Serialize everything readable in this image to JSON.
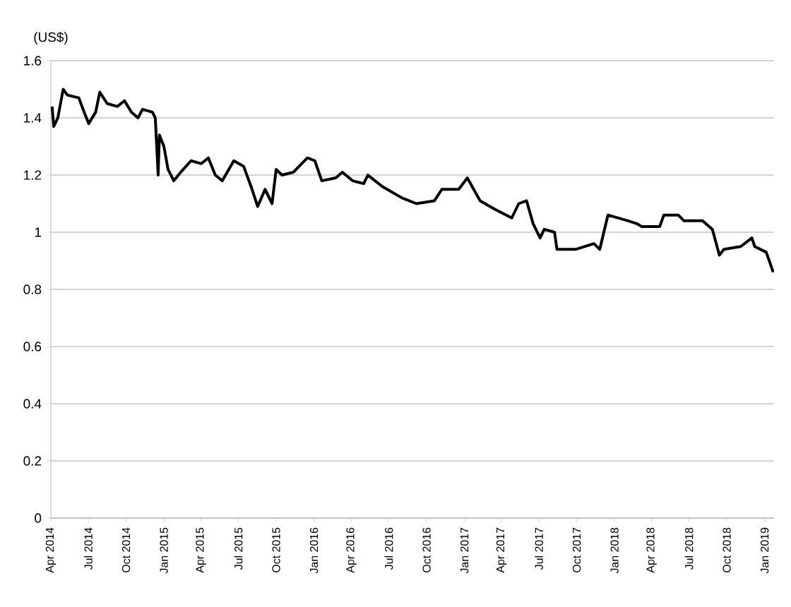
{
  "chart_data": {
    "type": "line",
    "ylabel": "(US$)",
    "x": [
      "2014-04-04",
      "2014-04-08",
      "2014-04-18",
      "2014-05-01",
      "2014-05-11",
      "2014-06-08",
      "2014-06-21",
      "2014-07-02",
      "2014-07-19",
      "2014-07-29",
      "2014-08-16",
      "2014-09-10",
      "2014-09-27",
      "2014-10-14",
      "2014-10-30",
      "2014-11-10",
      "2014-12-04",
      "2014-12-11",
      "2014-12-18",
      "2014-12-21",
      "2015-01-01",
      "2015-01-11",
      "2015-01-25",
      "2015-02-11",
      "2015-03-08",
      "2015-04-02",
      "2015-04-19",
      "2015-05-06",
      "2015-05-23",
      "2015-06-20",
      "2015-07-14",
      "2015-08-01",
      "2015-08-17",
      "2015-09-04",
      "2015-09-21",
      "2015-10-01",
      "2015-10-15",
      "2015-11-12",
      "2015-12-16",
      "2016-01-03",
      "2016-01-20",
      "2016-02-23",
      "2016-03-10",
      "2016-04-04",
      "2016-05-01",
      "2016-05-11",
      "2016-06-15",
      "2016-08-02",
      "2016-09-06",
      "2016-10-20",
      "2016-11-07",
      "2016-12-18",
      "2017-01-08",
      "2017-02-08",
      "2017-03-16",
      "2017-04-26",
      "2017-05-13",
      "2017-06-01",
      "2017-06-17",
      "2017-07-04",
      "2017-07-14",
      "2017-08-08",
      "2017-08-14",
      "2017-09-28",
      "2017-11-12",
      "2017-11-26",
      "2017-12-16",
      "2018-02-03",
      "2018-02-24",
      "2018-03-08",
      "2018-04-21",
      "2018-05-01",
      "2018-06-05",
      "2018-06-19",
      "2018-08-03",
      "2018-08-27",
      "2018-09-13",
      "2018-09-24",
      "2018-11-04",
      "2018-12-01",
      "2018-12-08",
      "2019-01-05",
      "2019-01-22"
    ],
    "series": [
      {
        "color": "#000000",
        "values": [
          1.44,
          1.37,
          1.4,
          1.5,
          1.48,
          1.47,
          1.42,
          1.38,
          1.42,
          1.49,
          1.45,
          1.44,
          1.46,
          1.42,
          1.4,
          1.43,
          1.42,
          1.4,
          1.2,
          1.34,
          1.3,
          1.22,
          1.18,
          1.21,
          1.25,
          1.24,
          1.26,
          1.2,
          1.18,
          1.25,
          1.23,
          1.16,
          1.09,
          1.15,
          1.1,
          1.22,
          1.2,
          1.21,
          1.26,
          1.25,
          1.18,
          1.19,
          1.21,
          1.18,
          1.17,
          1.2,
          1.16,
          1.12,
          1.1,
          1.11,
          1.15,
          1.15,
          1.19,
          1.11,
          1.08,
          1.05,
          1.1,
          1.11,
          1.03,
          0.98,
          1.01,
          1.0,
          0.94,
          0.94,
          0.96,
          0.94,
          1.06,
          1.04,
          1.03,
          1.02,
          1.02,
          1.06,
          1.06,
          1.04,
          1.04,
          1.01,
          0.92,
          0.94,
          0.95,
          0.98,
          0.95,
          0.93,
          0.86
        ]
      }
    ],
    "xlim": [
      "2014-04-01",
      "2019-01-24"
    ],
    "xticks": [
      {
        "value": "2014-04-01",
        "label": "Apr 2014"
      },
      {
        "value": "2014-07-01",
        "label": "Jul 2014"
      },
      {
        "value": "2014-10-01",
        "label": "Oct 2014"
      },
      {
        "value": "2015-01-01",
        "label": "Jan 2015"
      },
      {
        "value": "2015-04-01",
        "label": "Apr 2015"
      },
      {
        "value": "2015-07-01",
        "label": "Jul 2015"
      },
      {
        "value": "2015-10-01",
        "label": "Oct 2015"
      },
      {
        "value": "2016-01-01",
        "label": "Jan 2016"
      },
      {
        "value": "2016-04-01",
        "label": "Apr 2016"
      },
      {
        "value": "2016-07-01",
        "label": "Jul 2016"
      },
      {
        "value": "2016-10-01",
        "label": "Oct 2016"
      },
      {
        "value": "2017-01-01",
        "label": "Jan 2017"
      },
      {
        "value": "2017-04-01",
        "label": "Apr 2017"
      },
      {
        "value": "2017-07-01",
        "label": "Jul 2017"
      },
      {
        "value": "2017-10-01",
        "label": "Oct 2017"
      },
      {
        "value": "2018-01-01",
        "label": "Jan 2018"
      },
      {
        "value": "2018-04-01",
        "label": "Apr 2018"
      },
      {
        "value": "2018-07-01",
        "label": "Jul 2018"
      },
      {
        "value": "2018-10-01",
        "label": "Oct 2018"
      },
      {
        "value": "2019-01-01",
        "label": "Jan 2019"
      }
    ],
    "ylim": [
      0,
      1.6
    ],
    "yticks": [
      0,
      0.2,
      0.4,
      0.6,
      0.8,
      1,
      1.2,
      1.4,
      1.6
    ],
    "grid": "y",
    "marker": "none",
    "line_style": "solid"
  }
}
